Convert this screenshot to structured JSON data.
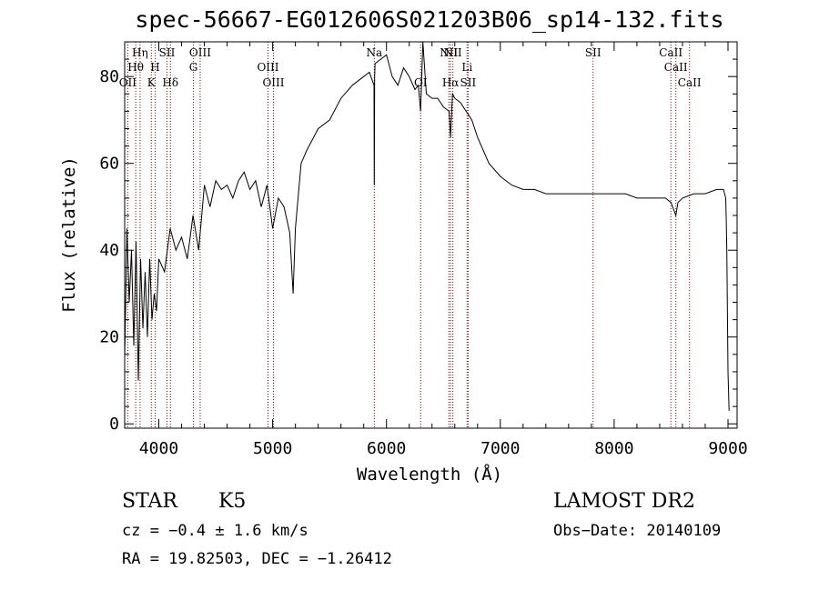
{
  "chart_data": {
    "type": "line",
    "title": "spec-56667-EG012606S021203B06_sp14-132.fits",
    "xlabel": "Wavelength (Å)",
    "ylabel": "Flux (relative)",
    "xlim": [
      3700,
      9080
    ],
    "ylim": [
      -1,
      88
    ],
    "x_ticks": [
      4000,
      5000,
      6000,
      7000,
      8000,
      9000
    ],
    "y_ticks": [
      0,
      20,
      40,
      60,
      80
    ],
    "grid": false,
    "series": [
      {
        "x": [
          3700,
          3720,
          3740,
          3760,
          3780,
          3800,
          3820,
          3840,
          3860,
          3880,
          3900,
          3920,
          3940,
          3960,
          3980,
          4000,
          4050,
          4100,
          4150,
          4200,
          4250,
          4300,
          4350,
          4400,
          4450,
          4500,
          4550,
          4600,
          4650,
          4700,
          4750,
          4800,
          4850,
          4900,
          4950,
          5000,
          5050,
          5100,
          5150,
          5180,
          5200,
          5250,
          5300,
          5400,
          5500,
          5600,
          5700,
          5800,
          5850,
          5890,
          5893,
          5896,
          5900,
          5950,
          6000,
          6050,
          6100,
          6150,
          6200,
          6250,
          6280,
          6300,
          6320,
          6350,
          6400,
          6450,
          6500,
          6550,
          6563,
          6580,
          6600,
          6650,
          6700,
          6750,
          6800,
          6900,
          7000,
          7100,
          7200,
          7300,
          7400,
          7500,
          7600,
          7700,
          7800,
          7900,
          8000,
          8100,
          8200,
          8300,
          8400,
          8450,
          8500,
          8542,
          8560,
          8600,
          8700,
          8800,
          8900,
          8960,
          8980,
          8985,
          8990,
          9000,
          9010
        ],
        "y": [
          15,
          45,
          28,
          40,
          18,
          42,
          10,
          38,
          22,
          35,
          20,
          38,
          24,
          30,
          26,
          38,
          35,
          45,
          40,
          43,
          38,
          48,
          40,
          55,
          50,
          56,
          54,
          55,
          52,
          56,
          58,
          54,
          56,
          50,
          55,
          45,
          52,
          50,
          44,
          30,
          45,
          60,
          63,
          68,
          70,
          75,
          78,
          80,
          81,
          78,
          55,
          80,
          83,
          84,
          85,
          80,
          78,
          82,
          80,
          77,
          78,
          72,
          88,
          76,
          75,
          75,
          73,
          72,
          66,
          76,
          75,
          74,
          72,
          70,
          66,
          60,
          57,
          55,
          54,
          54,
          53,
          53,
          53,
          53,
          53,
          53,
          53,
          53,
          52,
          52,
          52,
          52,
          51,
          48,
          51,
          52,
          53,
          53,
          54,
          54,
          52,
          47,
          40,
          12,
          3
        ]
      }
    ],
    "spectral_lines": [
      {
        "label": "OII",
        "x": 3727,
        "row": 3
      },
      {
        "label": "Hη",
        "x": 3835,
        "row": 1
      },
      {
        "label": "Hθ",
        "x": 3797,
        "row": 2
      },
      {
        "label": "H",
        "x": 3968,
        "row": 2
      },
      {
        "label": "K",
        "x": 3934,
        "row": 3
      },
      {
        "label": "SII",
        "x": 4072,
        "row": 1
      },
      {
        "label": "Hδ",
        "x": 4102,
        "row": 3
      },
      {
        "label": "OIII",
        "x": 4363,
        "row": 1
      },
      {
        "label": "G",
        "x": 4304,
        "row": 2
      },
      {
        "label": "OIII",
        "x": 4959,
        "row": 2
      },
      {
        "label": "OIII",
        "x": 5007,
        "row": 3
      },
      {
        "label": "Na",
        "x": 5893,
        "row": 1
      },
      {
        "label": "OI",
        "x": 6300,
        "row": 3
      },
      {
        "label": "NII",
        "x": 6548,
        "row": 1
      },
      {
        "label": "Hα",
        "x": 6563,
        "row": 3
      },
      {
        "label": "NII",
        "x": 6583,
        "row": 1
      },
      {
        "label": "Li",
        "x": 6708,
        "row": 2
      },
      {
        "label": "SII",
        "x": 6717,
        "row": 3
      },
      {
        "label": "SII",
        "x": 7815,
        "row": 1
      },
      {
        "label": "CaII",
        "x": 8498,
        "row": 1
      },
      {
        "label": "CaII",
        "x": 8542,
        "row": 2
      },
      {
        "label": "CaII",
        "x": 8662,
        "row": 3
      }
    ]
  },
  "info": {
    "classification": "STAR",
    "subclass": "K5",
    "survey": "LAMOST DR2",
    "cz": "cz = −0.4 ± 1.6 km/s",
    "obs_date": "Obs−Date: 20140109",
    "coords": "RA =  19.82503, DEC =  −1.26412"
  },
  "colors": {
    "line": "#000000",
    "marker": "#8b0000"
  }
}
